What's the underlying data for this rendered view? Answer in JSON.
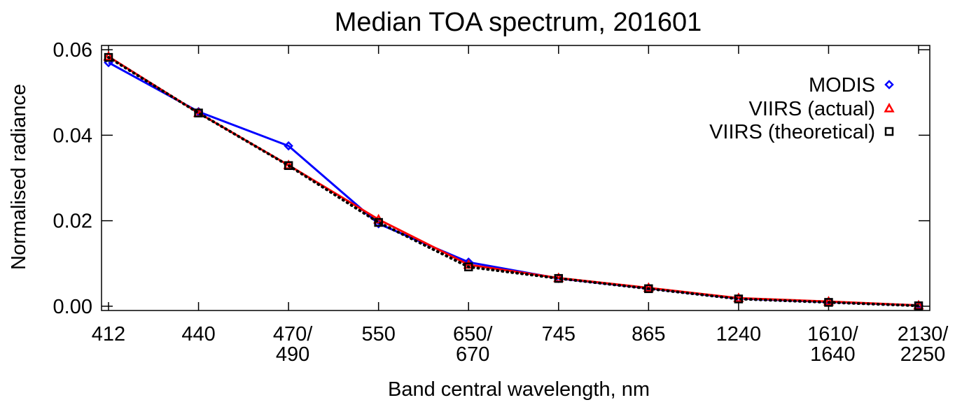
{
  "chart_data": {
    "type": "line",
    "title": "Median TOA spectrum, 201601",
    "xlabel": "Band central wavelength, nm",
    "ylabel": "Normalised radiance",
    "categories": [
      [
        "412"
      ],
      [
        "440"
      ],
      [
        "470/",
        "490"
      ],
      [
        "550"
      ],
      [
        "650/",
        "670"
      ],
      [
        "745"
      ],
      [
        "865"
      ],
      [
        "1240"
      ],
      [
        "1610/",
        "1640"
      ],
      [
        "2130/",
        "2250"
      ]
    ],
    "ylim": [
      -0.001,
      0.061
    ],
    "yticks": [
      {
        "value": 0.0,
        "label": "0.00"
      },
      {
        "value": 0.02,
        "label": "0.02"
      },
      {
        "value": 0.04,
        "label": "0.04"
      },
      {
        "value": 0.06,
        "label": "0.06"
      }
    ],
    "grid": false,
    "legend_position": "top-right",
    "series": [
      {
        "name": "MODIS",
        "color": "#0000ff",
        "marker": "diamond",
        "line": "solid",
        "values": [
          0.057,
          0.0455,
          0.0375,
          0.0193,
          0.0103,
          0.0065,
          0.0042,
          0.0018,
          0.001,
          0.0002
        ]
      },
      {
        "name": "VIIRS (actual)",
        "color": "#ff0000",
        "marker": "triangle",
        "line": "solid",
        "values": [
          0.0584,
          0.0452,
          0.033,
          0.0203,
          0.0097,
          0.0066,
          0.0043,
          0.0019,
          0.0011,
          0.0002
        ]
      },
      {
        "name": "VIIRS (theoretical)",
        "color": "#000000",
        "marker": "square",
        "line": "dotted",
        "values": [
          0.0582,
          0.0452,
          0.0329,
          0.0196,
          0.0092,
          0.0065,
          0.0041,
          0.0017,
          0.0009,
          0.0001
        ]
      }
    ]
  }
}
